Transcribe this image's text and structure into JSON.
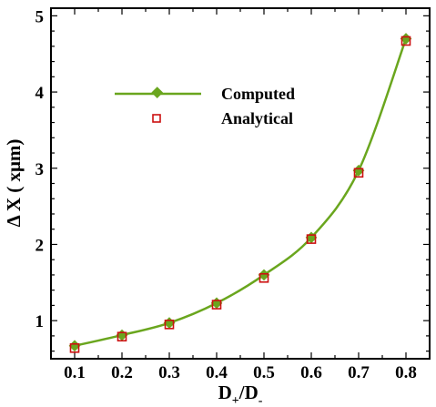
{
  "chart_data": {
    "type": "line",
    "xlabel": "D+/D-",
    "ylabel": "ΔX (xμm)",
    "xlim": [
      0.05,
      0.85
    ],
    "ylim": [
      0.5,
      5.1
    ],
    "x_ticks": [
      0.1,
      0.2,
      0.3,
      0.4,
      0.5,
      0.6,
      0.7,
      0.8
    ],
    "x_tick_labels": [
      "0.1",
      "0.2",
      "0.3",
      "0.4",
      "0.5",
      "0.6",
      "0.7",
      "0.8"
    ],
    "y_ticks": [
      1,
      2,
      3,
      4,
      5
    ],
    "y_tick_labels": [
      "1",
      "2",
      "3",
      "4",
      "5"
    ],
    "grid": false,
    "legend_position": "upper-left",
    "series": [
      {
        "name": "Computed",
        "style": "line-with-diamond-markers",
        "color": "#6aa61e",
        "x": [
          0.1,
          0.2,
          0.3,
          0.4,
          0.5,
          0.6,
          0.7,
          0.8
        ],
        "y": [
          0.67,
          0.81,
          0.97,
          1.23,
          1.6,
          2.09,
          2.97,
          4.7
        ]
      },
      {
        "name": "Analytical",
        "style": "open-square-markers",
        "color": "#cc1111",
        "x": [
          0.1,
          0.2,
          0.3,
          0.4,
          0.5,
          0.6,
          0.7,
          0.8
        ],
        "y": [
          0.64,
          0.79,
          0.95,
          1.21,
          1.56,
          2.07,
          2.94,
          4.67
        ]
      }
    ]
  }
}
